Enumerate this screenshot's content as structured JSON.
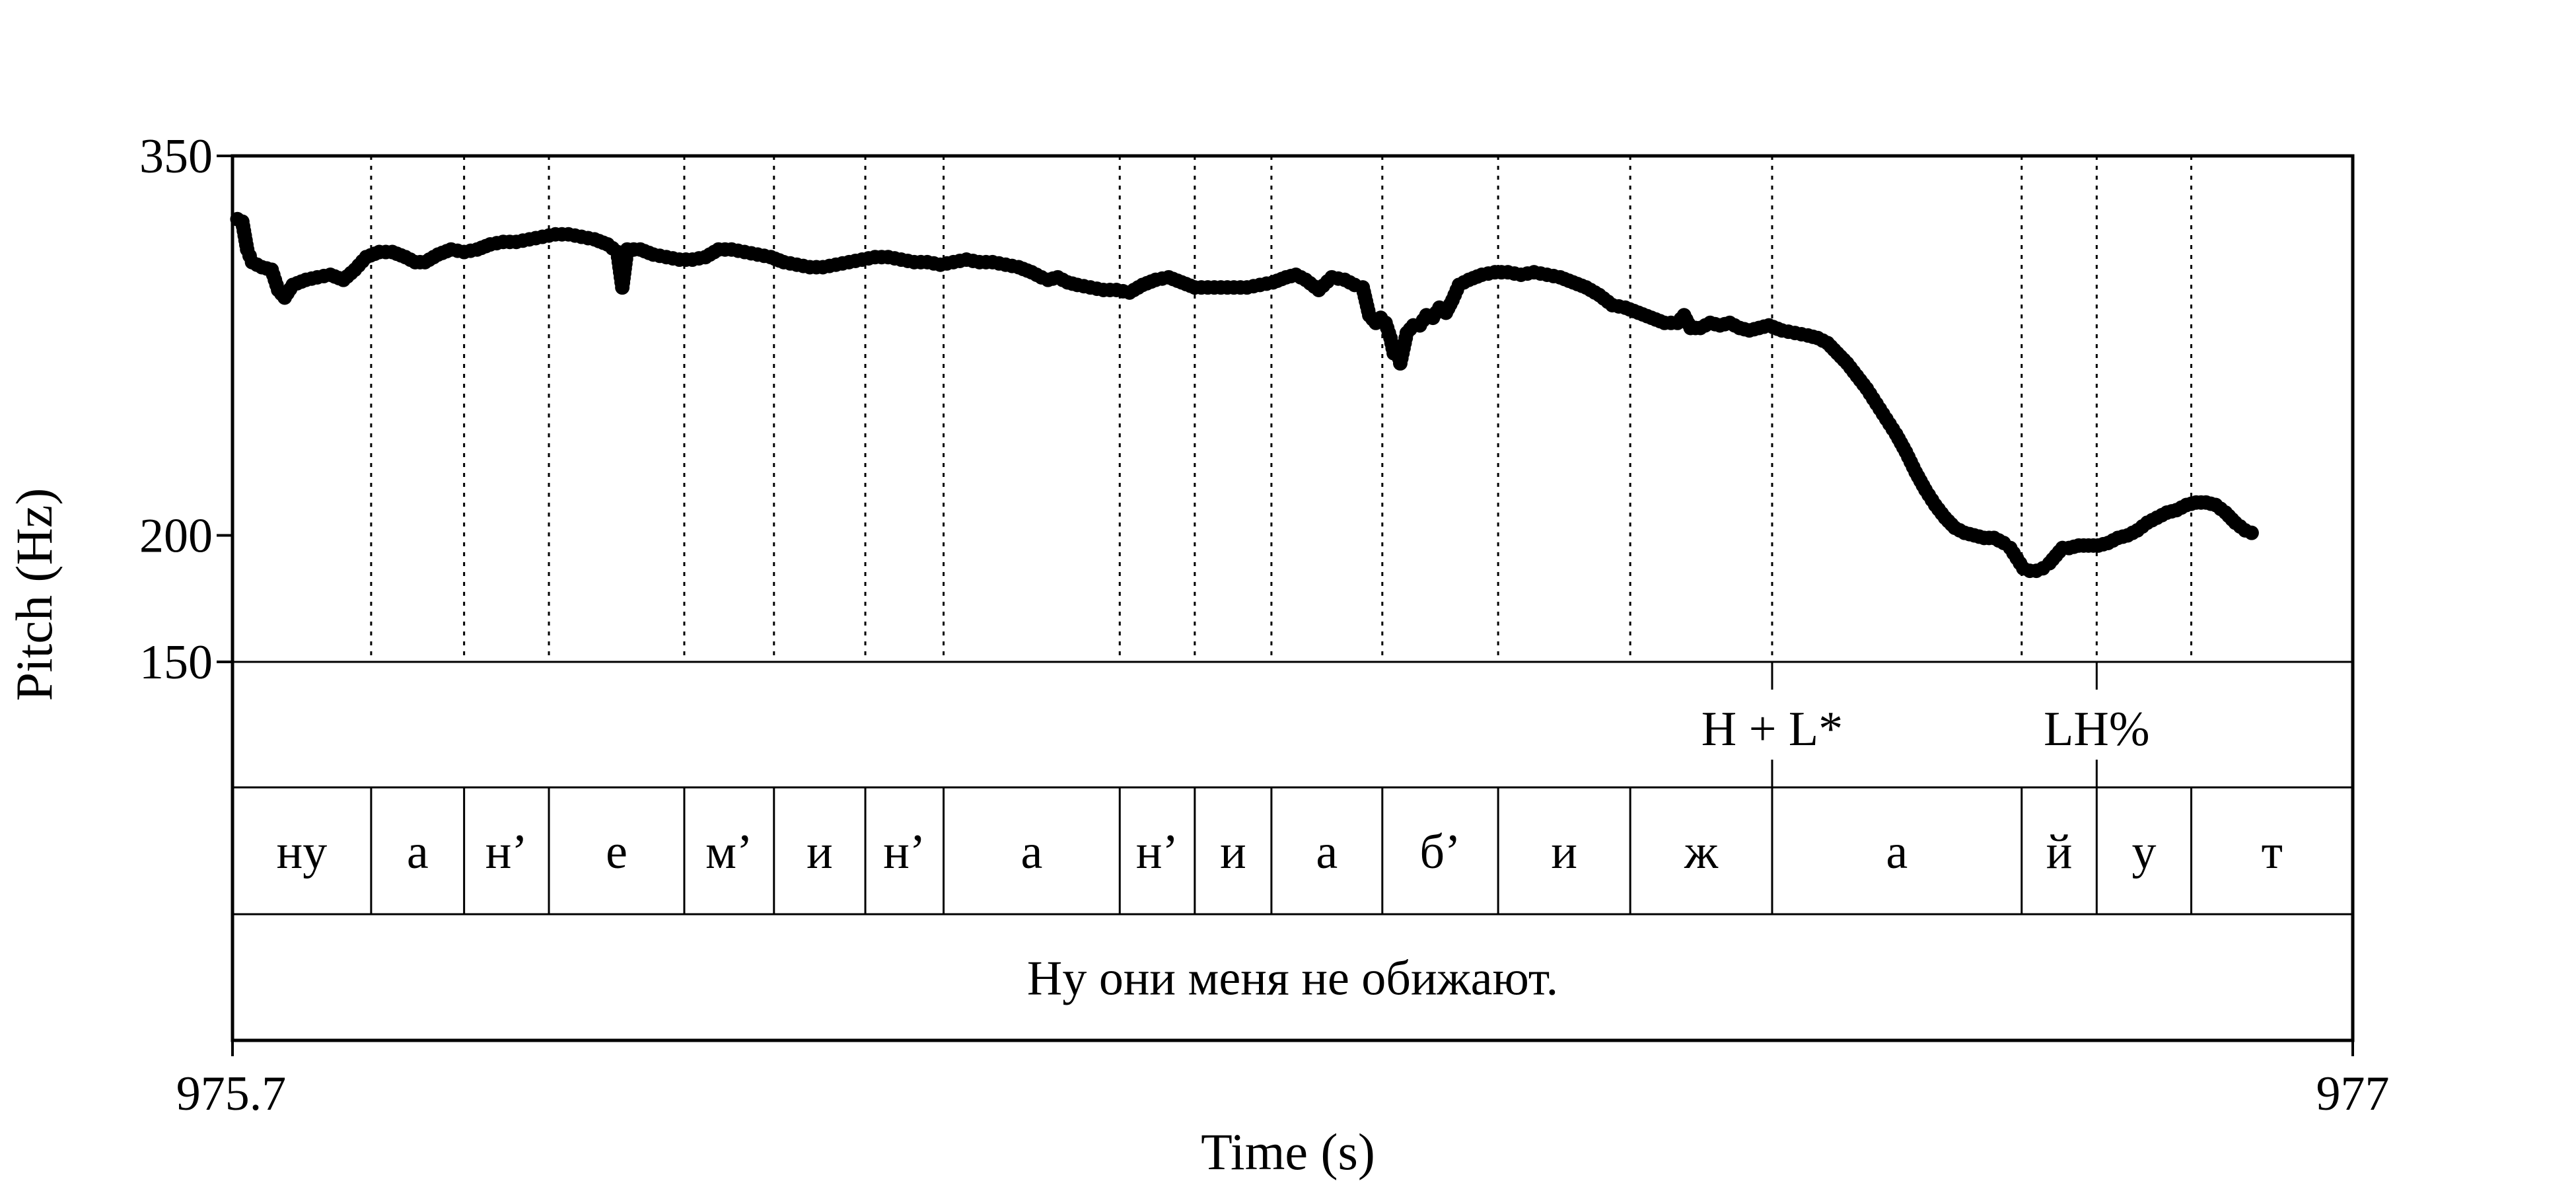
{
  "chart_data": {
    "type": "scatter",
    "title": "",
    "xlabel": "Time (s)",
    "ylabel": "Pitch (Hz)",
    "xlim": [
      975.7,
      977
    ],
    "ylim": [
      150,
      350
    ],
    "xtick_labels": [
      "975.7",
      "977"
    ],
    "ytick_labels": [
      "350",
      "200",
      "150"
    ],
    "yticks": [
      350,
      200,
      150
    ],
    "grid": false,
    "series": [
      {
        "points": [
          [
            975.703,
            325
          ],
          [
            975.706,
            324
          ],
          [
            975.709,
            313
          ],
          [
            975.712,
            308
          ],
          [
            975.718,
            306
          ],
          [
            975.724,
            305
          ],
          [
            975.728,
            297
          ],
          [
            975.732,
            294
          ],
          [
            975.737,
            299
          ],
          [
            975.745,
            301
          ],
          [
            975.752,
            302
          ],
          [
            975.76,
            303
          ],
          [
            975.768,
            301
          ],
          [
            975.775,
            305
          ],
          [
            975.782,
            310
          ],
          [
            975.79,
            312
          ],
          [
            975.798,
            312
          ],
          [
            975.806,
            310
          ],
          [
            975.812,
            308
          ],
          [
            975.818,
            308
          ],
          [
            975.826,
            311
          ],
          [
            975.834,
            313
          ],
          [
            975.842,
            312
          ],
          [
            975.85,
            313
          ],
          [
            975.858,
            315
          ],
          [
            975.866,
            316
          ],
          [
            975.874,
            316
          ],
          [
            975.882,
            317
          ],
          [
            975.89,
            318
          ],
          [
            975.898,
            319
          ],
          [
            975.906,
            319
          ],
          [
            975.914,
            318
          ],
          [
            975.922,
            317
          ],
          [
            975.93,
            315
          ],
          [
            975.936,
            312
          ],
          [
            975.939,
            298
          ],
          [
            975.942,
            313
          ],
          [
            975.95,
            313
          ],
          [
            975.958,
            311
          ],
          [
            975.966,
            310
          ],
          [
            975.974,
            309
          ],
          [
            975.982,
            309
          ],
          [
            975.99,
            310
          ],
          [
            975.998,
            313
          ],
          [
            976.006,
            313
          ],
          [
            976.014,
            312
          ],
          [
            976.022,
            311
          ],
          [
            976.03,
            310
          ],
          [
            976.038,
            308
          ],
          [
            976.046,
            307
          ],
          [
            976.054,
            306
          ],
          [
            976.062,
            306
          ],
          [
            976.07,
            307
          ],
          [
            976.078,
            308
          ],
          [
            976.086,
            309
          ],
          [
            976.094,
            310
          ],
          [
            976.102,
            310
          ],
          [
            976.11,
            309
          ],
          [
            976.118,
            308
          ],
          [
            976.126,
            308
          ],
          [
            976.134,
            307
          ],
          [
            976.142,
            308
          ],
          [
            976.15,
            309
          ],
          [
            976.158,
            308
          ],
          [
            976.166,
            308
          ],
          [
            976.174,
            307
          ],
          [
            976.182,
            306
          ],
          [
            976.19,
            304
          ],
          [
            976.196,
            302
          ],
          [
            976.2,
            301
          ],
          [
            976.206,
            302
          ],
          [
            976.212,
            300
          ],
          [
            976.218,
            299
          ],
          [
            976.226,
            298
          ],
          [
            976.234,
            297
          ],
          [
            976.242,
            297
          ],
          [
            976.25,
            296
          ],
          [
            976.258,
            299
          ],
          [
            976.266,
            301
          ],
          [
            976.274,
            302
          ],
          [
            976.282,
            300
          ],
          [
            976.29,
            298
          ],
          [
            976.298,
            298
          ],
          [
            976.306,
            298
          ],
          [
            976.314,
            298
          ],
          [
            976.322,
            298
          ],
          [
            976.33,
            299
          ],
          [
            976.338,
            300
          ],
          [
            976.346,
            302
          ],
          [
            976.352,
            303
          ],
          [
            976.358,
            301
          ],
          [
            976.366,
            297
          ],
          [
            976.374,
            302
          ],
          [
            976.382,
            301
          ],
          [
            976.388,
            299
          ],
          [
            976.393,
            298
          ],
          [
            976.397,
            287
          ],
          [
            976.401,
            284
          ],
          [
            976.404,
            286
          ],
          [
            976.407,
            284
          ],
          [
            976.41,
            278
          ],
          [
            976.412,
            272
          ],
          [
            976.414,
            274
          ],
          [
            976.416,
            268
          ],
          [
            976.42,
            280
          ],
          [
            976.424,
            283
          ],
          [
            976.428,
            283
          ],
          [
            976.432,
            287
          ],
          [
            976.436,
            286
          ],
          [
            976.44,
            290
          ],
          [
            976.444,
            288
          ],
          [
            976.448,
            293
          ],
          [
            976.452,
            299
          ],
          [
            976.458,
            301
          ],
          [
            976.466,
            303
          ],
          [
            976.474,
            304
          ],
          [
            976.482,
            304
          ],
          [
            976.49,
            303
          ],
          [
            976.498,
            304
          ],
          [
            976.506,
            303
          ],
          [
            976.514,
            302
          ],
          [
            976.522,
            300
          ],
          [
            976.53,
            298
          ],
          [
            976.538,
            295
          ],
          [
            976.546,
            291
          ],
          [
            976.554,
            290
          ],
          [
            976.562,
            288
          ],
          [
            976.57,
            286
          ],
          [
            976.578,
            284
          ],
          [
            976.586,
            284
          ],
          [
            976.59,
            287
          ],
          [
            976.594,
            282
          ],
          [
            976.6,
            282
          ],
          [
            976.606,
            284
          ],
          [
            976.612,
            283
          ],
          [
            976.618,
            284
          ],
          [
            976.624,
            282
          ],
          [
            976.63,
            281
          ],
          [
            976.636,
            282
          ],
          [
            976.642,
            283
          ],
          [
            976.65,
            281
          ],
          [
            976.658,
            280
          ],
          [
            976.666,
            279
          ],
          [
            976.672,
            278
          ],
          [
            976.678,
            276
          ],
          [
            976.684,
            272
          ],
          [
            976.69,
            268
          ],
          [
            976.696,
            263
          ],
          [
            976.702,
            258
          ],
          [
            976.708,
            252
          ],
          [
            976.714,
            246
          ],
          [
            976.72,
            240
          ],
          [
            976.726,
            233
          ],
          [
            976.732,
            225
          ],
          [
            976.738,
            218
          ],
          [
            976.744,
            212
          ],
          [
            976.75,
            207
          ],
          [
            976.756,
            203
          ],
          [
            976.762,
            201
          ],
          [
            976.768,
            200
          ],
          [
            976.774,
            199
          ],
          [
            976.78,
            199
          ],
          [
            976.786,
            197
          ],
          [
            976.79,
            195
          ],
          [
            976.794,
            191
          ],
          [
            976.798,
            187
          ],
          [
            976.802,
            186
          ],
          [
            976.806,
            186
          ],
          [
            976.81,
            187
          ],
          [
            976.814,
            189
          ],
          [
            976.818,
            192
          ],
          [
            976.822,
            195
          ],
          [
            976.826,
            195
          ],
          [
            976.832,
            196
          ],
          [
            976.838,
            196
          ],
          [
            976.844,
            196
          ],
          [
            976.85,
            197
          ],
          [
            976.856,
            199
          ],
          [
            976.862,
            200
          ],
          [
            976.868,
            202
          ],
          [
            976.874,
            205
          ],
          [
            976.88,
            207
          ],
          [
            976.886,
            209
          ],
          [
            976.892,
            210
          ],
          [
            976.898,
            212
          ],
          [
            976.904,
            213
          ],
          [
            976.91,
            213
          ],
          [
            976.916,
            212
          ],
          [
            976.922,
            209
          ],
          [
            976.928,
            205
          ],
          [
            976.934,
            202
          ],
          [
            976.938,
            201
          ]
        ]
      }
    ],
    "boundaries": [
      975.7,
      975.785,
      975.842,
      975.894,
      975.977,
      976.032,
      976.088,
      976.136,
      976.244,
      976.29,
      976.337,
      976.405,
      976.476,
      976.557,
      976.644,
      976.797,
      976.843,
      976.901,
      977.0
    ],
    "tiers": [
      {
        "name": "tones",
        "marks": [
          {
            "time": 976.644,
            "label": "H + L*"
          },
          {
            "time": 976.843,
            "label": "LH%"
          }
        ]
      },
      {
        "name": "segments",
        "intervals": [
          "ну",
          "а",
          "н’",
          "е",
          "м’",
          "и",
          "н’",
          "а",
          "н’",
          "и",
          "а",
          "б’",
          "и",
          "ж",
          "а",
          "й",
          "у",
          "т"
        ]
      },
      {
        "name": "sentence",
        "text": "Ну они меня не обижают."
      }
    ]
  }
}
